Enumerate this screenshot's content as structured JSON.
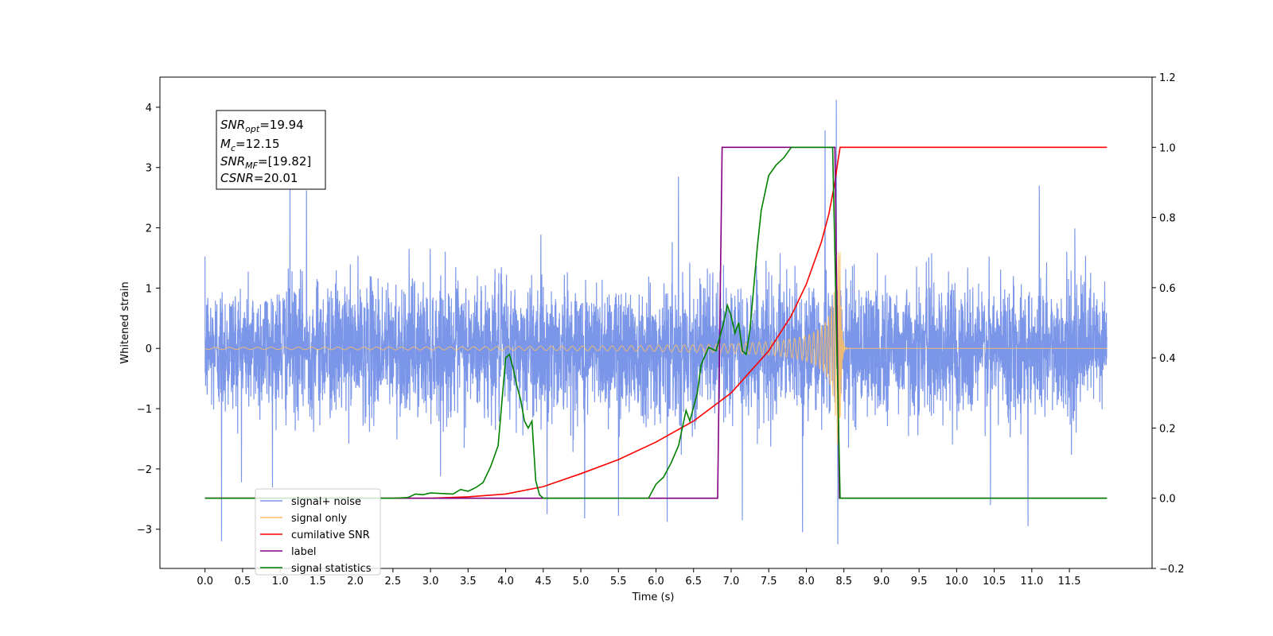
{
  "chart_data": {
    "type": "line",
    "xlabel": "Time (s)",
    "ylabel_left": "Whitened strain",
    "ylabel_right": "",
    "xlim": [
      -0.6,
      12.6
    ],
    "ylim_left": [
      -3.65,
      4.5
    ],
    "ylim_right": [
      -0.2,
      1.2
    ],
    "x_ticks": [
      0.0,
      0.5,
      1.0,
      1.5,
      2.0,
      2.5,
      3.0,
      3.5,
      4.0,
      4.5,
      5.0,
      5.5,
      6.0,
      6.5,
      7.0,
      7.5,
      8.0,
      8.5,
      9.0,
      9.5,
      10.0,
      10.5,
      11.0,
      11.5
    ],
    "x_tick_labels": [
      "0.0",
      "0.5",
      "1.0",
      "1.5",
      "2.0",
      "2.5",
      "3.0",
      "3.5",
      "4.0",
      "4.5",
      "5.0",
      "5.5",
      "6.0",
      "6.5",
      "7.0",
      "7.5",
      "8.0",
      "8.5",
      "9.0",
      "9.5",
      "10.0",
      "10.5",
      "11.0",
      "11.5"
    ],
    "y_ticks_left": [
      -3,
      -2,
      -1,
      0,
      1,
      2,
      3,
      4
    ],
    "y_tick_labels_left": [
      "−3",
      "−2",
      "−1",
      "0",
      "1",
      "2",
      "3",
      "4"
    ],
    "y_ticks_right": [
      -0.2,
      0.0,
      0.2,
      0.4,
      0.6,
      0.8,
      1.0,
      1.2
    ],
    "y_tick_labels_right": [
      "−0.2",
      "0.0",
      "0.2",
      "0.4",
      "0.6",
      "0.8",
      "1.0",
      "1.2"
    ],
    "grid": false,
    "legend_position": "lower-left",
    "info_box": {
      "line1": {
        "sym": "SNR",
        "sub": "opt",
        "rest": "=19.94"
      },
      "line2": {
        "sym": "M",
        "sub": "c",
        "rest": "=12.15"
      },
      "line3": {
        "sym": "SNR",
        "sub": "MF",
        "rest": "=[19.82]"
      },
      "line4": {
        "sym": "CSNR",
        "sub": "",
        "rest": "=20.01"
      }
    },
    "series": [
      {
        "name": "signal+ noise",
        "axis": "left",
        "color": "#7b96e8",
        "noise": {
          "t_start": 0.0,
          "t_end": 12.0,
          "std": 0.55,
          "min": -3.25,
          "max": 4.12
        },
        "spikes": [
          [
            0.22,
            -3.2
          ],
          [
            1.13,
            2.8
          ],
          [
            1.35,
            2.62
          ],
          [
            4.55,
            -2.75
          ],
          [
            5.05,
            -2.82
          ],
          [
            5.5,
            -2.78
          ],
          [
            6.15,
            -2.88
          ],
          [
            6.3,
            2.85
          ],
          [
            7.15,
            -2.85
          ],
          [
            7.95,
            -3.05
          ],
          [
            8.25,
            3.62
          ],
          [
            8.4,
            4.12
          ],
          [
            8.42,
            -3.25
          ],
          [
            10.45,
            -2.6
          ],
          [
            10.95,
            -2.95
          ],
          [
            11.1,
            2.7
          ]
        ]
      },
      {
        "name": "signal only",
        "axis": "left",
        "color": "#ffbf60",
        "chirp": {
          "t_start": 0.0,
          "t_merge": 8.45,
          "t_end": 12.0,
          "amp_start": 0.02,
          "amp_merge": 1.6
        }
      },
      {
        "name": "cumilative SNR",
        "axis": "right",
        "color": "#ff0000",
        "x": [
          0.0,
          3.0,
          3.5,
          4.0,
          4.5,
          5.0,
          5.5,
          6.0,
          6.5,
          7.0,
          7.5,
          7.8,
          8.0,
          8.2,
          8.3,
          8.38,
          8.42,
          8.45,
          12.0
        ],
        "y": [
          0.0,
          0.0,
          0.004,
          0.012,
          0.033,
          0.07,
          0.11,
          0.16,
          0.22,
          0.3,
          0.42,
          0.52,
          0.61,
          0.73,
          0.81,
          0.9,
          0.96,
          1.0,
          1.0
        ]
      },
      {
        "name": "label",
        "axis": "right",
        "color": "#800080",
        "x": [
          0.0,
          6.82,
          6.88,
          8.38,
          8.44,
          12.0
        ],
        "y": [
          0.0,
          0.0,
          1.0,
          1.0,
          0.0,
          0.0
        ]
      },
      {
        "name": "signal statistics",
        "axis": "right",
        "color": "#008000",
        "x": [
          0.0,
          2.5,
          2.7,
          2.8,
          2.9,
          3.0,
          3.3,
          3.4,
          3.5,
          3.6,
          3.7,
          3.8,
          3.9,
          4.0,
          4.05,
          4.1,
          4.15,
          4.2,
          4.25,
          4.3,
          4.35,
          4.4,
          4.45,
          4.5,
          4.6,
          5.9,
          6.0,
          6.1,
          6.2,
          6.3,
          6.4,
          6.45,
          6.5,
          6.55,
          6.6,
          6.7,
          6.8,
          6.9,
          6.95,
          7.0,
          7.05,
          7.1,
          7.15,
          7.2,
          7.25,
          7.3,
          7.35,
          7.4,
          7.5,
          7.6,
          7.7,
          7.8,
          8.35,
          8.45,
          12.0
        ],
        "y": [
          0.0,
          0.0,
          0.002,
          0.012,
          0.01,
          0.015,
          0.012,
          0.025,
          0.02,
          0.03,
          0.045,
          0.09,
          0.15,
          0.4,
          0.41,
          0.37,
          0.32,
          0.28,
          0.22,
          0.2,
          0.22,
          0.05,
          0.01,
          0.0,
          0.0,
          0.0,
          0.04,
          0.06,
          0.1,
          0.15,
          0.25,
          0.22,
          0.26,
          0.3,
          0.38,
          0.43,
          0.42,
          0.5,
          0.55,
          0.52,
          0.47,
          0.5,
          0.42,
          0.41,
          0.48,
          0.6,
          0.72,
          0.82,
          0.92,
          0.95,
          0.97,
          1.0,
          1.0,
          0.0,
          0.0
        ]
      }
    ],
    "legend": [
      {
        "label": "signal+ noise",
        "color": "#7b96e8"
      },
      {
        "label": "signal only",
        "color": "#ffbf60"
      },
      {
        "label": "cumilative SNR",
        "color": "#ff0000"
      },
      {
        "label": "label",
        "color": "#800080"
      },
      {
        "label": "signal statistics",
        "color": "#008000"
      }
    ]
  }
}
